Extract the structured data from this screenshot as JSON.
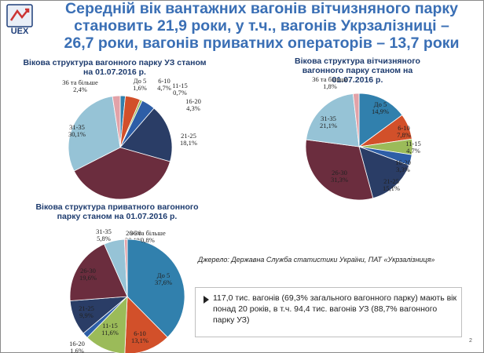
{
  "slide": {
    "title_lines": [
      "Середній вік вантажних вагонів вітчизняного парку",
      "становить 21,9 роки, у т.ч., вагонів Укрзалізниці –",
      "26,7 роки, вагонів приватних операторів – 13,7 роки"
    ],
    "logo_text": "UEX",
    "source": "Джерело: Державна Служба статистики України,  ПАТ «Укрзалізниця»",
    "note": "117,0 тис. вагонів (69,3% загального вагонного парку) мають вік понад 20 років, в т.ч. 94,4 тис. вагонів УЗ (88,7% вагонного парку УЗ)",
    "slide_number": "2"
  },
  "colors": {
    "title": "#3a6fb5",
    "do5": "#3180ad",
    "c6_10": "#d2502a",
    "c11_15": "#9bbb59",
    "c16_20": "#2d5ea7",
    "c21_25": "#2a3d66",
    "c26_30": "#6b2d3e",
    "c31_35": "#96c3d6",
    "c36": "#e2a2a8"
  },
  "chart_data": [
    {
      "type": "pie",
      "title": "Вікова структура вагонного парку УЗ станом на 01.07.2016 р.",
      "labels": [
        "До 5",
        "6-10",
        "11-15",
        "16-20",
        "21-25",
        "26-30",
        "31-35",
        "36 та більше"
      ],
      "values": [
        1.6,
        4.7,
        0.7,
        4.3,
        18.1,
        38.1,
        30.1,
        2.4
      ],
      "value_labels": [
        "1,6%",
        "4,7%",
        "0,7%",
        "4,3%",
        "18,1%",
        "38,1%",
        "30,1%",
        "2,4%"
      ]
    },
    {
      "type": "pie",
      "title": "Вікова структура вітчизняного вагонного парку станом на 01.07.2016 р.",
      "labels": [
        "До 5",
        "6-10",
        "11-15",
        "16-20",
        "21-25",
        "26-30",
        "31-35",
        "36 та більше"
      ],
      "values": [
        14.9,
        7.8,
        4.7,
        3.3,
        15.1,
        31.3,
        21.1,
        1.8
      ],
      "value_labels": [
        "14,9%",
        "7,8%",
        "4,7%",
        "3,3%",
        "15,1%",
        "31,3%",
        "21,1%",
        "1,8%"
      ]
    },
    {
      "type": "pie",
      "title": "Вікова структура приватного вагонного парку станом на 01.07.2016 р.",
      "labels": [
        "До 5",
        "6-10",
        "11-15",
        "16-20",
        "21-25",
        "26-30",
        "31-35",
        "36 та більше"
      ],
      "values": [
        37.6,
        13.1,
        11.6,
        1.6,
        9.9,
        19.6,
        5.8,
        0.8
      ],
      "value_labels": [
        "37,6%",
        "13,1%",
        "11,6%",
        "1,6%",
        "9,9%",
        "19,6%",
        "5,8%",
        "0,8%"
      ]
    }
  ]
}
